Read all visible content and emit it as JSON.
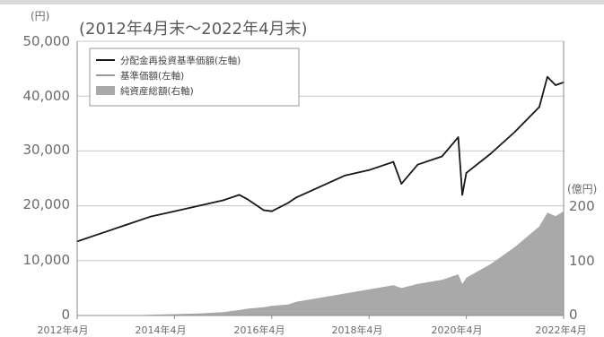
{
  "chart_data": {
    "type": "line",
    "title": "(2012年4月末～2022年4月末)",
    "left_axis_unit": "(円)",
    "right_axis_unit": "(億円)",
    "y_left_ticks": [
      "50,000",
      "40,000",
      "30,000",
      "20,000",
      "10,000",
      "0"
    ],
    "y_right_ticks": [
      "200",
      "100",
      "0"
    ],
    "x_tick_labels": [
      "2012年4月",
      "2014年4月",
      "2016年4月",
      "2018年4月",
      "2020年4月",
      "2022年4月"
    ],
    "ylim_left": [
      0,
      50000
    ],
    "ylim_right": [
      0,
      400
    ],
    "grid": "horizontal",
    "legend_position": "top-left",
    "colors": {
      "nav_reinvested": "#1a1a1a",
      "nav": "#9a9a9a",
      "net_assets": "#a9a9a9"
    },
    "x": [
      "2012-04",
      "2012-10",
      "2013-04",
      "2013-10",
      "2014-04",
      "2014-10",
      "2015-04",
      "2015-08",
      "2015-10",
      "2016-02",
      "2016-04",
      "2016-08",
      "2016-10",
      "2017-04",
      "2017-10",
      "2018-04",
      "2018-10",
      "2018-12",
      "2019-04",
      "2019-10",
      "2020-02",
      "2020-03",
      "2020-04",
      "2020-10",
      "2021-04",
      "2021-10",
      "2021-12",
      "2022-02",
      "2022-04"
    ],
    "series": [
      {
        "name": "分配金再投資基準価額(左軸)",
        "axis": "left",
        "values": [
          13500,
          15000,
          16500,
          18000,
          19000,
          20000,
          21000,
          22000,
          21200,
          19200,
          19000,
          20500,
          21500,
          23500,
          25500,
          26500,
          28000,
          24000,
          27500,
          29000,
          32500,
          22000,
          26000,
          29500,
          33500,
          38000,
          43500,
          42000,
          42500
        ]
      },
      {
        "name": "基準価額(左軸)",
        "axis": "left",
        "values": [
          13500,
          15000,
          16500,
          18000,
          19000,
          20000,
          21000,
          22000,
          21200,
          19200,
          19000,
          20500,
          21500,
          23500,
          25500,
          26500,
          28000,
          24000,
          27500,
          29000,
          32500,
          22000,
          26000,
          29500,
          33500,
          38000,
          43500,
          42000,
          42500
        ]
      },
      {
        "name": "純資産総額(右軸)",
        "axis": "right",
        "values": [
          0,
          0,
          0,
          1,
          2,
          3,
          5,
          8,
          10,
          12,
          14,
          16,
          20,
          26,
          32,
          38,
          44,
          40,
          46,
          52,
          60,
          46,
          55,
          75,
          100,
          130,
          150,
          145,
          152
        ]
      }
    ]
  }
}
